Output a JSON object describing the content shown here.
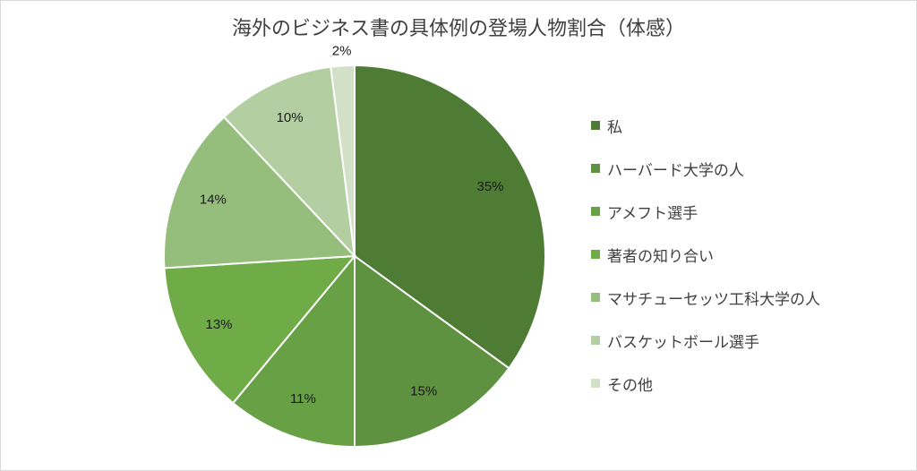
{
  "chart_data": {
    "type": "pie",
    "title": "海外のビジネス書の具体例の登場人物割合（体感）",
    "categories": [
      "私",
      "ハーバード大学の人",
      "アメフト選手",
      "著者の知り合い",
      "マサチューセッツ工科大学の人",
      "バスケットボール選手",
      "その他"
    ],
    "values": [
      35,
      15,
      11,
      13,
      14,
      10,
      2
    ],
    "labels": [
      "35%",
      "15%",
      "11%",
      "13%",
      "14%",
      "10%",
      "2%"
    ],
    "colors": [
      "#4e7c35",
      "#5e9140",
      "#67a045",
      "#6fac47",
      "#95bd7c",
      "#b3cfa2",
      "#d1e0c6"
    ],
    "legend_position": "right"
  }
}
